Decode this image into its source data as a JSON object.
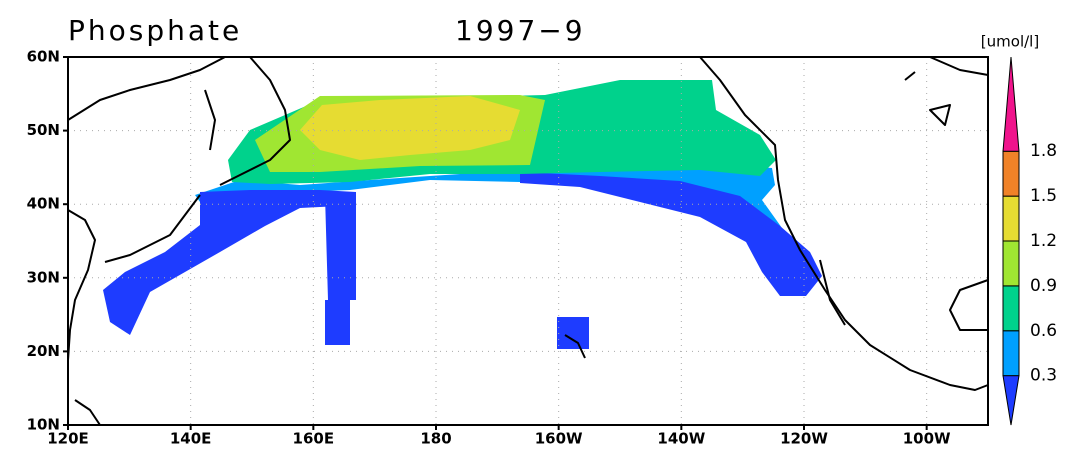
{
  "header": {
    "title": "Phosphate",
    "date": "1997−9"
  },
  "colorbar": {
    "unit": "[umol/l]",
    "labels": [
      "0.3",
      "0.6",
      "0.9",
      "1.2",
      "1.5",
      "1.8"
    ],
    "colors": [
      "#1e3cff",
      "#00a0ff",
      "#00d28c",
      "#a0e632",
      "#e6dc32",
      "#f08228",
      "#f0148c"
    ]
  },
  "axes": {
    "x_labels": [
      "120E",
      "140E",
      "160E",
      "180",
      "160W",
      "140W",
      "120W",
      "100W"
    ],
    "y_labels": [
      "10N",
      "20N",
      "30N",
      "40N",
      "50N",
      "60N"
    ]
  }
}
